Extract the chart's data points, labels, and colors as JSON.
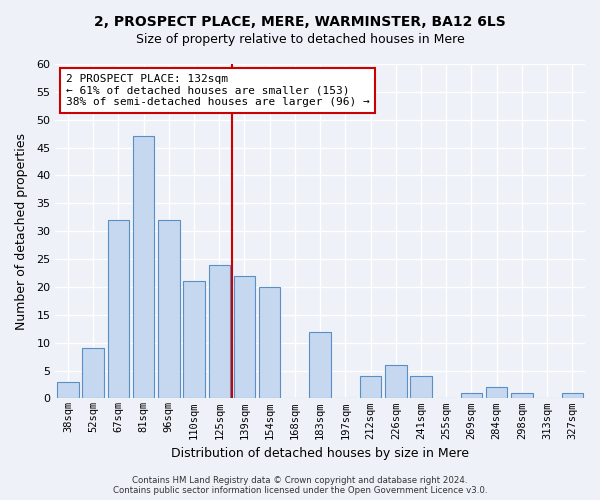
{
  "title1": "2, PROSPECT PLACE, MERE, WARMINSTER, BA12 6LS",
  "title2": "Size of property relative to detached houses in Mere",
  "xlabel": "Distribution of detached houses by size in Mere",
  "ylabel": "Number of detached properties",
  "bin_labels": [
    "38sqm",
    "52sqm",
    "67sqm",
    "81sqm",
    "96sqm",
    "110sqm",
    "125sqm",
    "139sqm",
    "154sqm",
    "168sqm",
    "183sqm",
    "197sqm",
    "212sqm",
    "226sqm",
    "241sqm",
    "255sqm",
    "269sqm",
    "284sqm",
    "298sqm",
    "313sqm",
    "327sqm"
  ],
  "bar_values": [
    3,
    9,
    32,
    47,
    32,
    21,
    24,
    22,
    20,
    0,
    12,
    0,
    4,
    6,
    4,
    0,
    1,
    2,
    1,
    0,
    1
  ],
  "bar_color": "#c5d8f0",
  "bar_edge_color": "#5a8fc4",
  "property_line_x": 6.5,
  "property_line_color": "#cc0000",
  "ylim": [
    0,
    60
  ],
  "yticks": [
    0,
    5,
    10,
    15,
    20,
    25,
    30,
    35,
    40,
    45,
    50,
    55,
    60
  ],
  "annotation_title": "2 PROSPECT PLACE: 132sqm",
  "annotation_line1": "← 61% of detached houses are smaller (153)",
  "annotation_line2": "38% of semi-detached houses are larger (96) →",
  "annotation_box_color": "#ffffff",
  "annotation_box_edge": "#cc0000",
  "footer1": "Contains HM Land Registry data © Crown copyright and database right 2024.",
  "footer2": "Contains public sector information licensed under the Open Government Licence v3.0.",
  "bg_color": "#eef2f8",
  "grid_color": "#ffffff"
}
